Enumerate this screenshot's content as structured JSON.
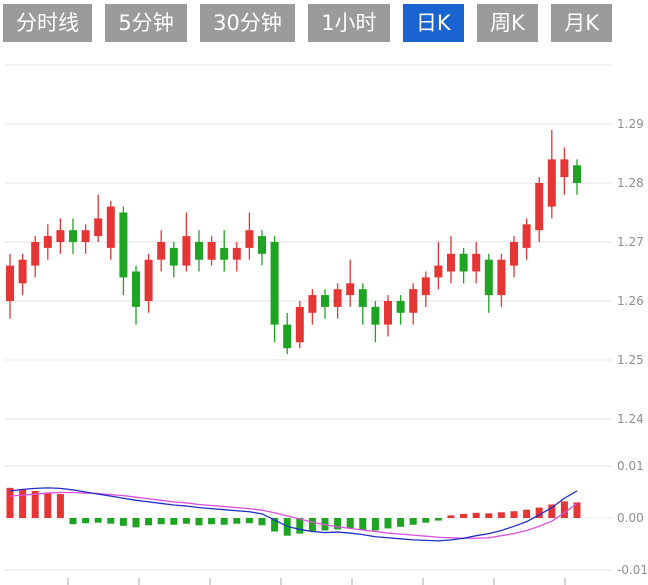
{
  "tabs": [
    {
      "label": "分时线",
      "active": false
    },
    {
      "label": "5分钟",
      "active": false
    },
    {
      "label": "30分钟",
      "active": false
    },
    {
      "label": "1小时",
      "active": false
    },
    {
      "label": "日K",
      "active": true
    },
    {
      "label": "周K",
      "active": false
    },
    {
      "label": "月K",
      "active": false
    }
  ],
  "chart_data": {
    "type": "candlestick",
    "indicator": "MACD",
    "grid": true,
    "legend_position": "none",
    "price_axis": {
      "labels": [
        "1.29",
        "1.28",
        "1.27",
        "1.26",
        "1.25",
        "1.24"
      ],
      "values": [
        1.29,
        1.28,
        1.27,
        1.26,
        1.25,
        1.24
      ],
      "ylim": [
        1.238,
        1.301
      ]
    },
    "macd_axis": {
      "labels": [
        "0.01",
        "0.00",
        "-0.01"
      ],
      "values": [
        0.01,
        0,
        -0.01
      ],
      "ylim": [
        -0.011,
        0.011
      ]
    },
    "candles": [
      [
        1.26,
        1.268,
        1.257,
        1.266
      ],
      [
        1.263,
        1.268,
        1.261,
        1.267
      ],
      [
        1.266,
        1.271,
        1.264,
        1.27
      ],
      [
        1.269,
        1.273,
        1.267,
        1.271
      ],
      [
        1.27,
        1.274,
        1.268,
        1.272
      ],
      [
        1.272,
        1.274,
        1.268,
        1.27
      ],
      [
        1.27,
        1.273,
        1.268,
        1.272
      ],
      [
        1.271,
        1.278,
        1.27,
        1.274
      ],
      [
        1.269,
        1.277,
        1.267,
        1.276
      ],
      [
        1.275,
        1.276,
        1.261,
        1.264
      ],
      [
        1.265,
        1.266,
        1.256,
        1.259
      ],
      [
        1.26,
        1.268,
        1.258,
        1.267
      ],
      [
        1.267,
        1.272,
        1.265,
        1.27
      ],
      [
        1.269,
        1.27,
        1.264,
        1.266
      ],
      [
        1.266,
        1.275,
        1.265,
        1.271
      ],
      [
        1.27,
        1.272,
        1.265,
        1.267
      ],
      [
        1.267,
        1.271,
        1.266,
        1.27
      ],
      [
        1.269,
        1.272,
        1.265,
        1.267
      ],
      [
        1.267,
        1.27,
        1.265,
        1.269
      ],
      [
        1.269,
        1.275,
        1.267,
        1.272
      ],
      [
        1.271,
        1.272,
        1.266,
        1.268
      ],
      [
        1.27,
        1.271,
        1.253,
        1.256
      ],
      [
        1.256,
        1.258,
        1.251,
        1.252
      ],
      [
        1.253,
        1.26,
        1.252,
        1.259
      ],
      [
        1.258,
        1.262,
        1.256,
        1.261
      ],
      [
        1.261,
        1.262,
        1.257,
        1.259
      ],
      [
        1.259,
        1.263,
        1.257,
        1.262
      ],
      [
        1.261,
        1.267,
        1.259,
        1.263
      ],
      [
        1.262,
        1.263,
        1.256,
        1.259
      ],
      [
        1.259,
        1.26,
        1.253,
        1.256
      ],
      [
        1.256,
        1.261,
        1.254,
        1.26
      ],
      [
        1.26,
        1.261,
        1.256,
        1.258
      ],
      [
        1.258,
        1.263,
        1.256,
        1.262
      ],
      [
        1.261,
        1.265,
        1.259,
        1.264
      ],
      [
        1.264,
        1.27,
        1.262,
        1.266
      ],
      [
        1.265,
        1.271,
        1.263,
        1.268
      ],
      [
        1.268,
        1.269,
        1.263,
        1.265
      ],
      [
        1.265,
        1.27,
        1.263,
        1.268
      ],
      [
        1.267,
        1.268,
        1.258,
        1.261
      ],
      [
        1.261,
        1.268,
        1.259,
        1.267
      ],
      [
        1.266,
        1.271,
        1.264,
        1.27
      ],
      [
        1.269,
        1.274,
        1.267,
        1.273
      ],
      [
        1.272,
        1.281,
        1.27,
        1.28
      ],
      [
        1.276,
        1.289,
        1.274,
        1.284
      ],
      [
        1.281,
        1.286,
        1.278,
        1.284
      ],
      [
        1.283,
        1.284,
        1.278,
        1.28
      ]
    ],
    "macd": {
      "hist": [
        0.0058,
        0.0055,
        0.0052,
        0.0049,
        0.0046,
        -0.0012,
        -0.001,
        -0.0009,
        -0.0011,
        -0.0015,
        -0.0018,
        -0.0014,
        -0.0012,
        -0.0013,
        -0.0011,
        -0.0014,
        -0.0012,
        -0.0013,
        -0.0011,
        -0.001,
        -0.0014,
        -0.0026,
        -0.0034,
        -0.003,
        -0.0026,
        -0.0024,
        -0.0022,
        -0.002,
        -0.0023,
        -0.0024,
        -0.002,
        -0.0017,
        -0.0013,
        -0.0009,
        -0.0005,
        0.0005,
        0.0008,
        0.001,
        0.0009,
        0.0011,
        0.0013,
        0.0016,
        0.002,
        0.0026,
        0.0032,
        0.003
      ],
      "dif": [
        0.0052,
        0.0055,
        0.0057,
        0.0058,
        0.0057,
        0.0054,
        0.005,
        0.0046,
        0.0042,
        0.0038,
        0.0034,
        0.0031,
        0.0028,
        0.0025,
        0.0023,
        0.002,
        0.0018,
        0.0016,
        0.0014,
        0.0012,
        0.0008,
        -0.0004,
        -0.0016,
        -0.0022,
        -0.0026,
        -0.0028,
        -0.0027,
        -0.0029,
        -0.0032,
        -0.0036,
        -0.0038,
        -0.004,
        -0.0042,
        -0.0043,
        -0.0044,
        -0.0042,
        -0.0039,
        -0.0034,
        -0.003,
        -0.0024,
        -0.0016,
        -0.0007,
        0.0006,
        0.002,
        0.0038,
        0.0052
      ],
      "dea": [
        0.0042,
        0.0044,
        0.0046,
        0.0048,
        0.0049,
        0.0049,
        0.0048,
        0.0047,
        0.0045,
        0.0043,
        0.004,
        0.0037,
        0.0034,
        0.0031,
        0.0029,
        0.0026,
        0.0024,
        0.0022,
        0.002,
        0.0018,
        0.0015,
        0.001,
        0.0004,
        -0.0002,
        -0.0008,
        -0.0013,
        -0.0017,
        -0.002,
        -0.0023,
        -0.0026,
        -0.0029,
        -0.0031,
        -0.0033,
        -0.0035,
        -0.0037,
        -0.0038,
        -0.0039,
        -0.0039,
        -0.0038,
        -0.0034,
        -0.003,
        -0.0024,
        -0.0016,
        -0.0006,
        0.001,
        0.0028
      ]
    },
    "colors": {
      "up": "#e53535",
      "down": "#1fa322",
      "dif": "#2030c8",
      "dea": "#e050dd",
      "grid": "#e3e3e3",
      "zero": "#ededed",
      "label": "#8f8f8f",
      "tick": "#a8a8a8",
      "tab_bg": "#9b9b9b",
      "tab_active_bg": "#1a64d2"
    }
  }
}
